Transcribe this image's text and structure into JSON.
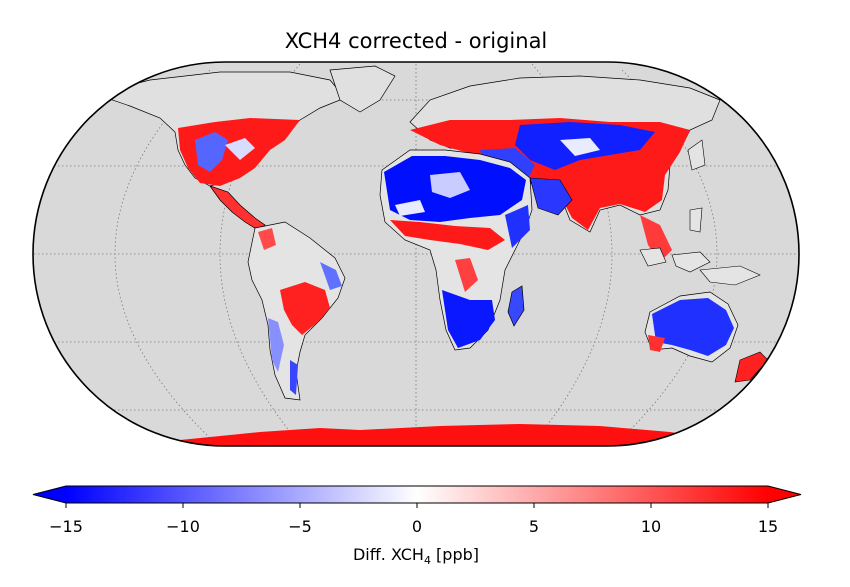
{
  "title": "XCH4 corrected - original",
  "colorbar": {
    "label_main": "Diff. XCH",
    "label_sub": "4",
    "label_unit": " [ppb]",
    "ticks": [
      "−15",
      "−10",
      "−5",
      "0",
      "5",
      "10",
      "15"
    ],
    "tick_values": [
      -15,
      -10,
      -5,
      0,
      5,
      10,
      15
    ],
    "range": [
      -15,
      15
    ],
    "extend": "both",
    "colormap": "bwr",
    "color_low": "#0000ff",
    "color_mid": "#ffffff",
    "color_high": "#ff0000"
  },
  "map": {
    "projection": "Eckert IV",
    "ocean_color": "#d9d9d9",
    "land_no_data_color": "#d9d9d9",
    "coastline_color": "#000000",
    "gridlines": "dotted"
  }
}
